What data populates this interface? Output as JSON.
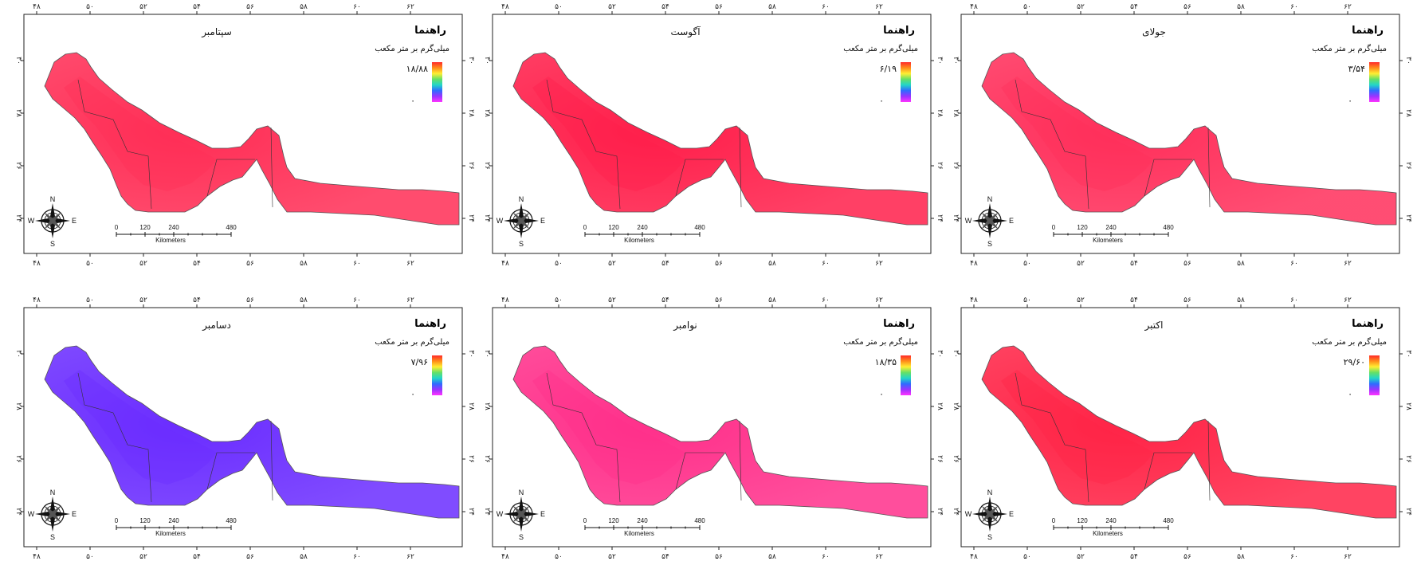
{
  "legend_colors": [
    "#ff2a2a",
    "#ff8c1a",
    "#ffee33",
    "#66e066",
    "#22d6c8",
    "#2f6bff",
    "#9a33ff",
    "#ff33ff"
  ],
  "map_colors": {
    "outline": "#555555",
    "frame": "#222222"
  },
  "panels": [
    {
      "title": "سپتامبر",
      "legend_title": "راهنما",
      "unit": "میلی‌گرم بر متر مکعب",
      "max_label": "۱۸/۸۸",
      "min_label": "٠",
      "fill": "#ff2d55",
      "lon_ticks": [
        "۴۸",
        "۵٠",
        "۵۲",
        "۵۴",
        "۵۶",
        "۵۸",
        "۶٠",
        "۶۲"
      ],
      "lat_ticks": [
        "۳٠",
        "۲۸",
        "۲۶",
        "۲۴"
      ],
      "scale": {
        "marks": [
          "0",
          "120",
          "240",
          "480"
        ],
        "unit": "Kilometers"
      },
      "compass": {
        "n": "N",
        "s": "S",
        "e": "E",
        "w": "W"
      }
    },
    {
      "title": "آگوست",
      "legend_title": "راهنما",
      "unit": "میلی‌گرم بر متر مکعب",
      "max_label": "۶/۱۹",
      "min_label": "٠",
      "fill": "#ff1e4a",
      "lon_ticks": [
        "۴۸",
        "۵٠",
        "۵۲",
        "۵۴",
        "۵۶",
        "۵۸",
        "۶٠",
        "۶۲"
      ],
      "lat_ticks": [
        "۳٠",
        "۲۸",
        "۲۶",
        "۲۴"
      ],
      "scale": {
        "marks": [
          "0",
          "120",
          "240",
          "480"
        ],
        "unit": "Kilometers"
      },
      "compass": {
        "n": "N",
        "s": "S",
        "e": "E",
        "w": "W"
      }
    },
    {
      "title": "جولای",
      "legend_title": "راهنما",
      "unit": "میلی‌گرم بر متر مکعب",
      "max_label": "۳/۵۴",
      "min_label": "٠",
      "fill": "#ff2e5a",
      "lon_ticks": [
        "۴۸",
        "۵٠",
        "۵۲",
        "۵۴",
        "۵۶",
        "۵۸",
        "۶٠",
        "۶۲"
      ],
      "lat_ticks": [
        "۳٠",
        "۲۸",
        "۲۶",
        "۲۴"
      ],
      "scale": {
        "marks": [
          "0",
          "120",
          "240",
          "480"
        ],
        "unit": "Kilometers"
      },
      "compass": {
        "n": "N",
        "s": "S",
        "e": "E",
        "w": "W"
      }
    },
    {
      "title": "دسامبر",
      "legend_title": "راهنما",
      "unit": "میلی‌گرم بر متر مکعب",
      "max_label": "۷/۹۶",
      "min_label": "٠",
      "fill": "#6a2cff",
      "lon_ticks": [
        "۴۸",
        "۵٠",
        "۵۲",
        "۵۴",
        "۵۶",
        "۵۸",
        "۶٠",
        "۶۲"
      ],
      "lat_ticks": [
        "۳٠",
        "۲۸",
        "۲۶",
        "۲۴"
      ],
      "scale": {
        "marks": [
          "0",
          "120",
          "240",
          "480"
        ],
        "unit": "Kilometers"
      },
      "compass": {
        "n": "N",
        "s": "S",
        "e": "E",
        "w": "W"
      }
    },
    {
      "title": "نوامبر",
      "legend_title": "راهنما",
      "unit": "میلی‌گرم بر متر مکعب",
      "max_label": "۱۸/۳۵",
      "min_label": "٠",
      "fill": "#ff2f8a",
      "lon_ticks": [
        "۴۸",
        "۵٠",
        "۵۲",
        "۵۴",
        "۵۶",
        "۵۸",
        "۶٠",
        "۶۲"
      ],
      "lat_ticks": [
        "۳٠",
        "۲۸",
        "۲۶",
        "۲۴"
      ],
      "scale": {
        "marks": [
          "0",
          "120",
          "240",
          "480"
        ],
        "unit": "Kilometers"
      },
      "compass": {
        "n": "N",
        "s": "S",
        "e": "E",
        "w": "W"
      }
    },
    {
      "title": "اکتبر",
      "legend_title": "راهنما",
      "unit": "میلی‌گرم بر متر مکعب",
      "max_label": "۲۹/۶٠",
      "min_label": "٠",
      "fill": "#ff2346",
      "lon_ticks": [
        "۴۸",
        "۵٠",
        "۵۲",
        "۵۴",
        "۵۶",
        "۵۸",
        "۶٠",
        "۶۲"
      ],
      "lat_ticks": [
        "۳٠",
        "۲۸",
        "۲۶",
        "۲۴"
      ],
      "scale": {
        "marks": [
          "0",
          "120",
          "240",
          "480"
        ],
        "unit": "Kilometers"
      },
      "compass": {
        "n": "N",
        "s": "S",
        "e": "E",
        "w": "W"
      }
    }
  ]
}
